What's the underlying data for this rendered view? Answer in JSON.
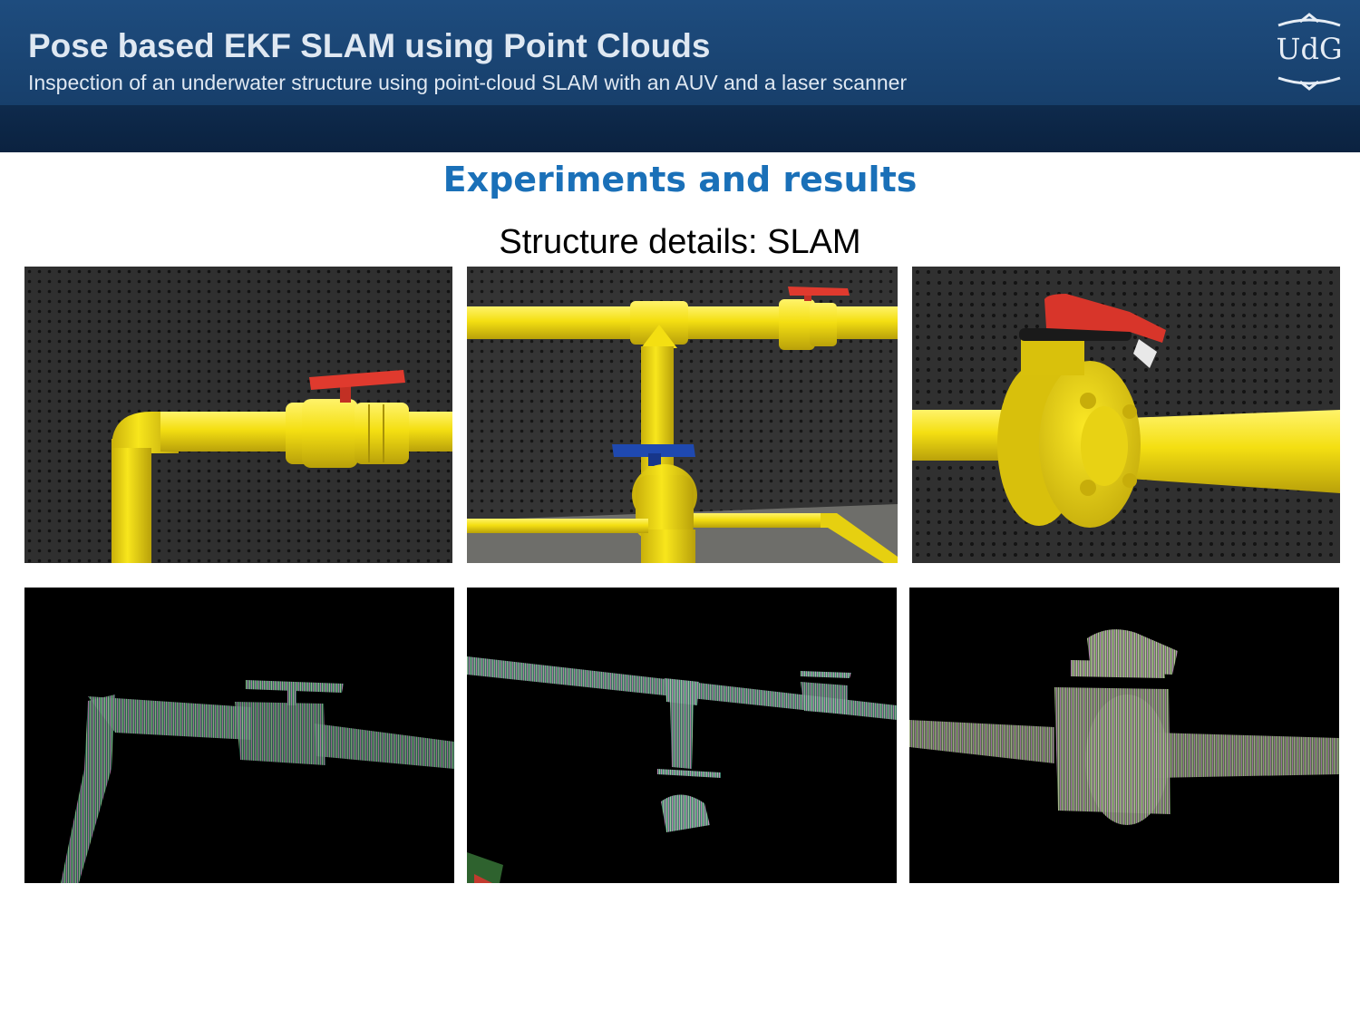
{
  "header": {
    "title": "Pose based EKF SLAM using Point Clouds",
    "subtitle": "Inspection of an underwater structure using point-cloud SLAM with an AUV and a laser scanner",
    "logo_text": "UdG"
  },
  "content": {
    "heading": "Experiments and results",
    "caption": "Structure details: SLAM"
  },
  "figures": {
    "photos": [
      {
        "name": "photo-pipe-elbow-valve",
        "subject": "yellow pipe elbow with red-handled valve"
      },
      {
        "name": "photo-pipe-tee-junction",
        "subject": "yellow pipe tee junction with red and blue valves"
      },
      {
        "name": "photo-butterfly-valve",
        "subject": "yellow pipe with flanged butterfly valve"
      }
    ],
    "point_clouds": [
      {
        "name": "pointcloud-pipe-elbow-valve",
        "subject": "point cloud of pipe elbow with valve"
      },
      {
        "name": "pointcloud-pipe-tee-junction",
        "subject": "point cloud of pipe tee junction"
      },
      {
        "name": "pointcloud-butterfly-valve",
        "subject": "point cloud of flanged butterfly valve"
      }
    ]
  },
  "colors": {
    "header": "#1e4c7e",
    "band": "#0e2a4c",
    "heading": "#1a70b8",
    "pipe": "#f5e11a",
    "valve_red": "#e03a2e",
    "valve_blue": "#1f49b0",
    "wall": "#2e2e2e"
  }
}
